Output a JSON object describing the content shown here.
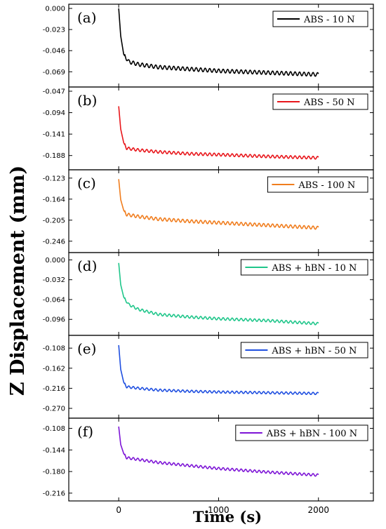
{
  "chart_data": {
    "type": "line",
    "ylabel": "Z Displacement (mm)",
    "xlabel": "Time (s)",
    "x_ticks": [
      "0",
      "1000",
      "2000"
    ],
    "xlim": [
      -500,
      2550
    ],
    "panels": [
      {
        "panel_label": "(a)",
        "series": [
          {
            "name": "ABS - 10 N",
            "color": "#000000",
            "x": [
              0,
              20,
              50,
              100,
              200,
              400,
              700,
              1000,
              1500,
              2000
            ],
            "y": [
              0.0,
              -0.03,
              -0.05,
              -0.058,
              -0.061,
              -0.064,
              -0.066,
              -0.068,
              -0.07,
              -0.072
            ],
            "osc_amplitude": 0.002
          }
        ],
        "y_ticks": [
          "0.000",
          "-0.023",
          "-0.046",
          "-0.069"
        ],
        "ylim": [
          -0.081,
          0.0
        ]
      },
      {
        "panel_label": "(b)",
        "series": [
          {
            "name": "ABS - 50 N",
            "color": "#e8161b",
            "x": [
              0,
              20,
              50,
              80,
              200,
              400,
              700,
              1000,
              1500,
              2000
            ],
            "y": [
              -0.08,
              -0.13,
              -0.16,
              -0.172,
              -0.176,
              -0.18,
              -0.184,
              -0.186,
              -0.19,
              -0.193
            ],
            "osc_amplitude": 0.003
          }
        ],
        "y_ticks": [
          "-0.047",
          "-0.094",
          "-0.141",
          "-0.188"
        ],
        "ylim": [
          -0.21,
          -0.047
        ]
      },
      {
        "panel_label": "(c)",
        "series": [
          {
            "name": "ABS - 100 N",
            "color": "#f07d1e",
            "x": [
              0,
              20,
              50,
              80,
              200,
              400,
              700,
              1000,
              1500,
              2000
            ],
            "y": [
              -0.125,
              -0.165,
              -0.186,
              -0.194,
              -0.198,
              -0.203,
              -0.207,
              -0.21,
              -0.215,
              -0.22
            ],
            "osc_amplitude": 0.003
          }
        ],
        "y_ticks": [
          "-0.123",
          "-0.164",
          "-0.205",
          "-0.246"
        ],
        "ylim": [
          -0.26,
          -0.115
        ]
      },
      {
        "panel_label": "(d)",
        "series": [
          {
            "name": "ABS + hBN - 10 N",
            "color": "#1fc68a",
            "x": [
              0,
              20,
              50,
              100,
              200,
              400,
              700,
              1000,
              1500,
              2000
            ],
            "y": [
              -0.005,
              -0.04,
              -0.06,
              -0.072,
              -0.08,
              -0.088,
              -0.092,
              -0.095,
              -0.098,
              -0.103
            ],
            "osc_amplitude": 0.002
          }
        ],
        "y_ticks": [
          "0.000",
          "-0.032",
          "-0.064",
          "-0.096"
        ],
        "ylim": [
          -0.115,
          0.005
        ]
      },
      {
        "panel_label": "(e)",
        "series": [
          {
            "name": "ABS + hBN - 50 N",
            "color": "#1f4fe0",
            "x": [
              0,
              20,
              50,
              80,
              200,
              400,
              700,
              1000,
              1500,
              2000
            ],
            "y": [
              -0.1,
              -0.165,
              -0.2,
              -0.212,
              -0.216,
              -0.221,
              -0.224,
              -0.226,
              -0.228,
              -0.23
            ],
            "osc_amplitude": 0.003
          }
        ],
        "y_ticks": [
          "-0.108",
          "-0.162",
          "-0.216",
          "-0.270"
        ],
        "ylim": [
          -0.285,
          -0.085
        ]
      },
      {
        "panel_label": "(f)",
        "series": [
          {
            "name": "ABS + hBN - 100 N",
            "color": "#7d14d6",
            "x": [
              0,
              20,
              50,
              80,
              200,
              400,
              700,
              1000,
              1500,
              2000
            ],
            "y": [
              -0.105,
              -0.135,
              -0.15,
              -0.157,
              -0.16,
              -0.165,
              -0.17,
              -0.175,
              -0.181,
              -0.186
            ],
            "osc_amplitude": 0.002
          }
        ],
        "y_ticks": [
          "-0.108",
          "-0.144",
          "-0.180",
          "-0.216"
        ],
        "ylim": [
          -0.222,
          -0.098
        ]
      }
    ]
  }
}
